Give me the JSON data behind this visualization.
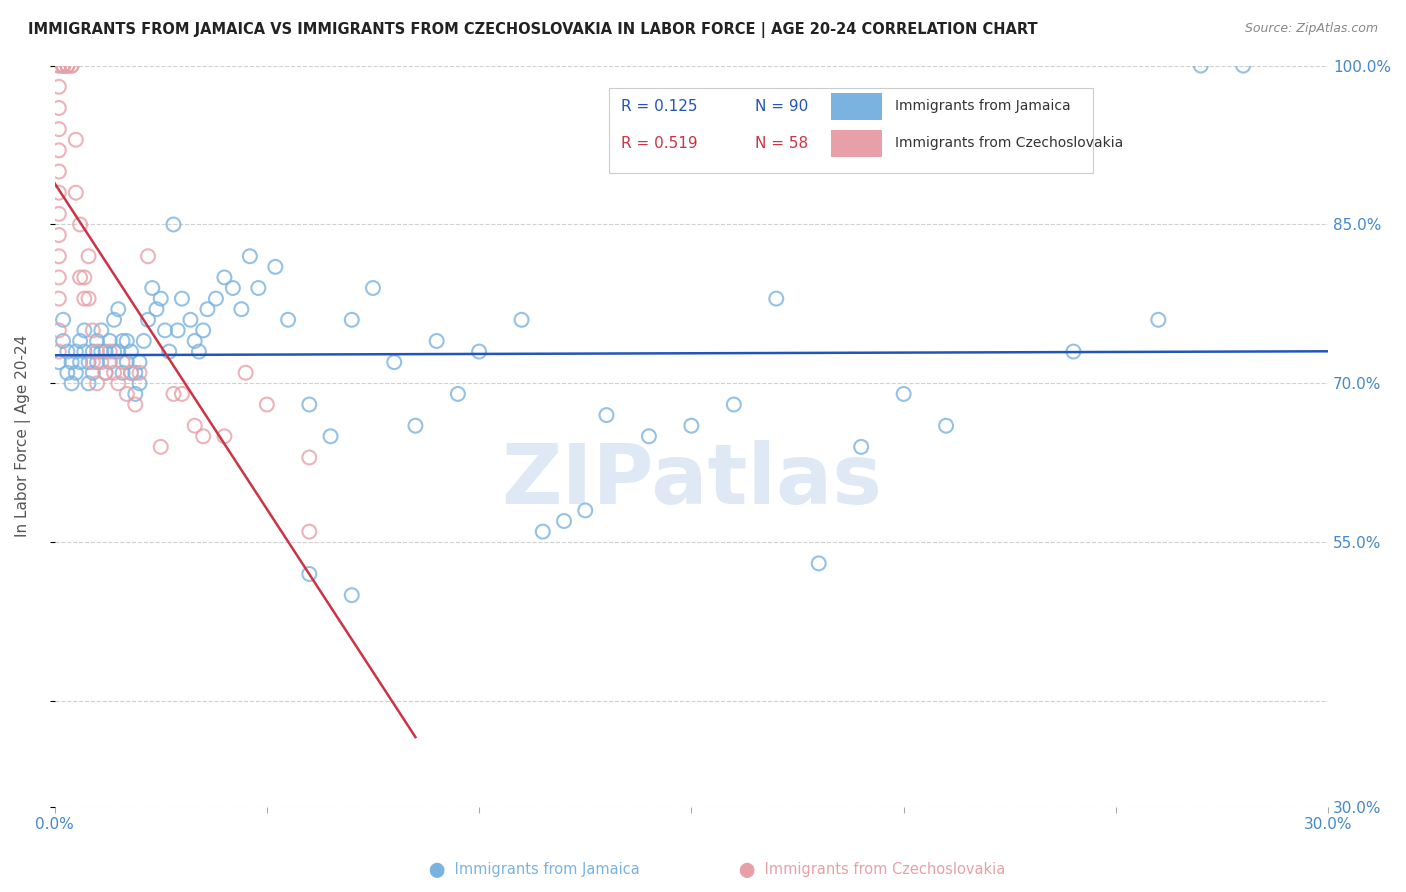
{
  "title": "IMMIGRANTS FROM JAMAICA VS IMMIGRANTS FROM CZECHOSLOVAKIA IN LABOR FORCE | AGE 20-24 CORRELATION CHART",
  "source": "Source: ZipAtlas.com",
  "ylabel": "In Labor Force | Age 20-24",
  "xlim": [
    0.0,
    0.3
  ],
  "ylim": [
    0.3,
    1.0
  ],
  "xtick_positions": [
    0.0,
    0.05,
    0.1,
    0.15,
    0.2,
    0.25,
    0.3
  ],
  "xticklabels": [
    "0.0%",
    "",
    "",
    "",
    "",
    "",
    "30.0%"
  ],
  "ytick_positions": [
    0.3,
    0.4,
    0.55,
    0.7,
    0.85,
    1.0
  ],
  "yticklabels_right": [
    "30.0%",
    "",
    "55.0%",
    "70.0%",
    "85.0%",
    "100.0%"
  ],
  "blue_color": "#7ab3e0",
  "pink_color": "#e8a0a8",
  "blue_line_color": "#2255bb",
  "pink_line_color": "#cc3344",
  "R_blue": 0.125,
  "N_blue": 90,
  "R_pink": 0.519,
  "N_pink": 58,
  "legend_blue_label": "Immigrants from Jamaica",
  "legend_pink_label": "Immigrants from Czechoslovakia",
  "watermark": "ZIPatlas",
  "blue_scatter": [
    [
      0.001,
      0.72
    ],
    [
      0.002,
      0.74
    ],
    [
      0.002,
      0.76
    ],
    [
      0.003,
      0.71
    ],
    [
      0.003,
      0.73
    ],
    [
      0.004,
      0.7
    ],
    [
      0.004,
      0.72
    ],
    [
      0.005,
      0.71
    ],
    [
      0.005,
      0.73
    ],
    [
      0.006,
      0.72
    ],
    [
      0.006,
      0.74
    ],
    [
      0.007,
      0.73
    ],
    [
      0.007,
      0.75
    ],
    [
      0.008,
      0.72
    ],
    [
      0.008,
      0.7
    ],
    [
      0.009,
      0.71
    ],
    [
      0.009,
      0.73
    ],
    [
      0.01,
      0.72
    ],
    [
      0.01,
      0.74
    ],
    [
      0.011,
      0.73
    ],
    [
      0.011,
      0.75
    ],
    [
      0.012,
      0.73
    ],
    [
      0.012,
      0.71
    ],
    [
      0.013,
      0.74
    ],
    [
      0.013,
      0.72
    ],
    [
      0.014,
      0.76
    ],
    [
      0.014,
      0.73
    ],
    [
      0.015,
      0.77
    ],
    [
      0.015,
      0.73
    ],
    [
      0.016,
      0.74
    ],
    [
      0.016,
      0.71
    ],
    [
      0.017,
      0.74
    ],
    [
      0.017,
      0.72
    ],
    [
      0.018,
      0.73
    ],
    [
      0.018,
      0.71
    ],
    [
      0.019,
      0.71
    ],
    [
      0.019,
      0.69
    ],
    [
      0.02,
      0.72
    ],
    [
      0.02,
      0.7
    ],
    [
      0.021,
      0.74
    ],
    [
      0.022,
      0.76
    ],
    [
      0.023,
      0.79
    ],
    [
      0.024,
      0.77
    ],
    [
      0.025,
      0.78
    ],
    [
      0.026,
      0.75
    ],
    [
      0.027,
      0.73
    ],
    [
      0.028,
      0.85
    ],
    [
      0.029,
      0.75
    ],
    [
      0.03,
      0.78
    ],
    [
      0.032,
      0.76
    ],
    [
      0.033,
      0.74
    ],
    [
      0.034,
      0.73
    ],
    [
      0.035,
      0.75
    ],
    [
      0.036,
      0.77
    ],
    [
      0.038,
      0.78
    ],
    [
      0.04,
      0.8
    ],
    [
      0.042,
      0.79
    ],
    [
      0.044,
      0.77
    ],
    [
      0.046,
      0.82
    ],
    [
      0.048,
      0.79
    ],
    [
      0.052,
      0.81
    ],
    [
      0.055,
      0.76
    ],
    [
      0.06,
      0.68
    ],
    [
      0.065,
      0.65
    ],
    [
      0.07,
      0.76
    ],
    [
      0.075,
      0.79
    ],
    [
      0.08,
      0.72
    ],
    [
      0.085,
      0.66
    ],
    [
      0.09,
      0.74
    ],
    [
      0.095,
      0.69
    ],
    [
      0.1,
      0.73
    ],
    [
      0.11,
      0.76
    ],
    [
      0.115,
      0.56
    ],
    [
      0.12,
      0.57
    ],
    [
      0.125,
      0.58
    ],
    [
      0.13,
      0.67
    ],
    [
      0.14,
      0.65
    ],
    [
      0.15,
      0.66
    ],
    [
      0.16,
      0.68
    ],
    [
      0.17,
      0.78
    ],
    [
      0.18,
      0.53
    ],
    [
      0.19,
      0.64
    ],
    [
      0.2,
      0.69
    ],
    [
      0.21,
      0.66
    ],
    [
      0.24,
      0.73
    ],
    [
      0.26,
      0.76
    ],
    [
      0.27,
      1.0
    ],
    [
      0.28,
      1.0
    ],
    [
      0.06,
      0.52
    ],
    [
      0.07,
      0.5
    ]
  ],
  "pink_scatter": [
    [
      0.001,
      0.73
    ],
    [
      0.001,
      0.75
    ],
    [
      0.001,
      0.78
    ],
    [
      0.001,
      0.8
    ],
    [
      0.001,
      0.82
    ],
    [
      0.001,
      0.84
    ],
    [
      0.001,
      0.86
    ],
    [
      0.001,
      0.88
    ],
    [
      0.001,
      0.9
    ],
    [
      0.001,
      0.92
    ],
    [
      0.001,
      0.94
    ],
    [
      0.001,
      0.96
    ],
    [
      0.001,
      0.98
    ],
    [
      0.001,
      1.0
    ],
    [
      0.001,
      1.0
    ],
    [
      0.002,
      1.0
    ],
    [
      0.002,
      1.0
    ],
    [
      0.002,
      1.0
    ],
    [
      0.002,
      1.0
    ],
    [
      0.002,
      1.0
    ],
    [
      0.003,
      1.0
    ],
    [
      0.003,
      1.0
    ],
    [
      0.003,
      1.0
    ],
    [
      0.004,
      1.0
    ],
    [
      0.004,
      1.0
    ],
    [
      0.005,
      0.93
    ],
    [
      0.005,
      0.88
    ],
    [
      0.006,
      0.85
    ],
    [
      0.006,
      0.8
    ],
    [
      0.007,
      0.8
    ],
    [
      0.007,
      0.78
    ],
    [
      0.008,
      0.82
    ],
    [
      0.008,
      0.78
    ],
    [
      0.009,
      0.75
    ],
    [
      0.009,
      0.72
    ],
    [
      0.01,
      0.73
    ],
    [
      0.01,
      0.7
    ],
    [
      0.011,
      0.72
    ],
    [
      0.012,
      0.71
    ],
    [
      0.013,
      0.73
    ],
    [
      0.014,
      0.71
    ],
    [
      0.015,
      0.7
    ],
    [
      0.016,
      0.72
    ],
    [
      0.017,
      0.69
    ],
    [
      0.018,
      0.71
    ],
    [
      0.019,
      0.68
    ],
    [
      0.02,
      0.71
    ],
    [
      0.022,
      0.82
    ],
    [
      0.025,
      0.64
    ],
    [
      0.028,
      0.69
    ],
    [
      0.03,
      0.69
    ],
    [
      0.033,
      0.66
    ],
    [
      0.035,
      0.65
    ],
    [
      0.04,
      0.65
    ],
    [
      0.045,
      0.71
    ],
    [
      0.05,
      0.68
    ],
    [
      0.06,
      0.63
    ],
    [
      0.06,
      0.56
    ]
  ]
}
